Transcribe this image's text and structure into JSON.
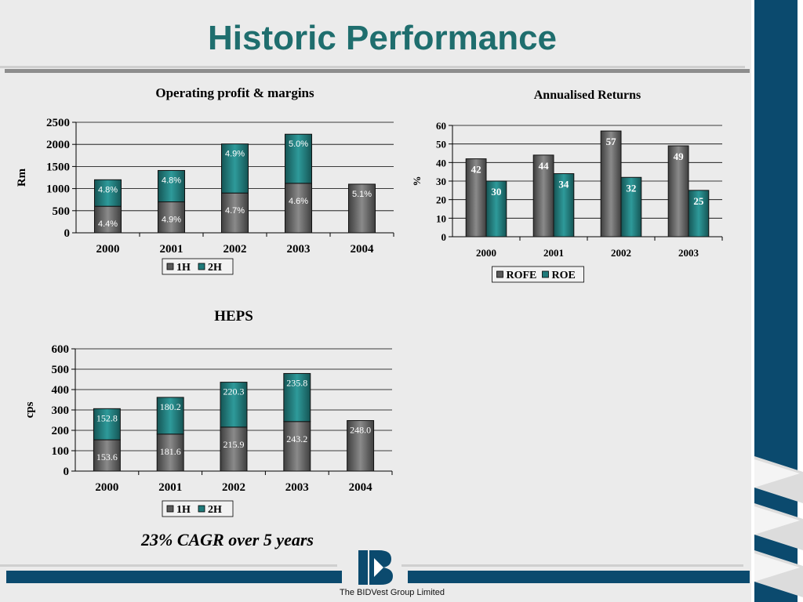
{
  "slide": {
    "title": "Historic Performance",
    "footnote": "23% CAGR over 5 years",
    "company": "The BIDVest Group Limited"
  },
  "colors": {
    "title": "#1f6e6e",
    "series_1h": "#5a5a5a",
    "series_2h": "#1f7a7a",
    "navy": "#0b4a6e"
  },
  "chart_data": [
    {
      "type": "bar",
      "stacked": true,
      "title": "Operating profit & margins",
      "ylabel": "Rm",
      "xlabel": "",
      "categories": [
        "2000",
        "2001",
        "2002",
        "2003",
        "2004"
      ],
      "series": [
        {
          "name": "1H",
          "values": [
            600,
            700,
            900,
            1120,
            1100
          ]
        },
        {
          "name": "2H",
          "values": [
            600,
            710,
            1110,
            1110,
            null
          ]
        }
      ],
      "labels_1h": [
        "4.4%",
        "4.9%",
        "4.7%",
        "4.6%",
        "5.1%"
      ],
      "labels_2h": [
        "4.8%",
        "4.8%",
        "4.9%",
        "5.0%",
        ""
      ],
      "ylim": [
        0,
        2500
      ],
      "yticks": [
        0,
        500,
        1000,
        1500,
        2000,
        2500
      ],
      "grid": true,
      "legend": "bottom"
    },
    {
      "type": "bar",
      "grouped": true,
      "title": "Annualised Returns",
      "ylabel": "%",
      "xlabel": "",
      "categories": [
        "2000",
        "2001",
        "2002",
        "2003"
      ],
      "series": [
        {
          "name": "ROFE",
          "values": [
            42,
            44,
            57,
            49
          ]
        },
        {
          "name": "ROE",
          "values": [
            30,
            34,
            32,
            25
          ]
        }
      ],
      "ylim": [
        0,
        60
      ],
      "yticks": [
        0,
        10,
        20,
        30,
        40,
        50,
        60
      ],
      "grid": true,
      "legend": "bottom"
    },
    {
      "type": "bar",
      "stacked": true,
      "title": "HEPS",
      "ylabel": "cps",
      "xlabel": "",
      "categories": [
        "2000",
        "2001",
        "2002",
        "2003",
        "2004"
      ],
      "series": [
        {
          "name": "1H",
          "values": [
            153.6,
            181.6,
            215.9,
            243.2,
            248.0
          ]
        },
        {
          "name": "2H",
          "values": [
            152.8,
            180.2,
            220.3,
            235.8,
            null
          ]
        }
      ],
      "labels_1h": [
        "153.6",
        "181.6",
        "215.9",
        "243.2",
        "248.0"
      ],
      "labels_2h": [
        "152.8",
        "180.2",
        "220.3",
        "235.8",
        ""
      ],
      "ylim": [
        0,
        600
      ],
      "yticks": [
        0,
        100,
        200,
        300,
        400,
        500,
        600
      ],
      "grid": true,
      "legend": "bottom"
    }
  ]
}
